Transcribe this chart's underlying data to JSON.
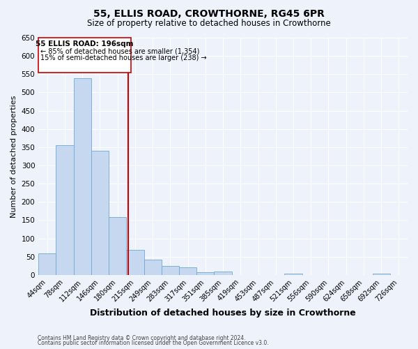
{
  "title": "55, ELLIS ROAD, CROWTHORNE, RG45 6PR",
  "subtitle": "Size of property relative to detached houses in Crowthorne",
  "xlabel": "Distribution of detached houses by size in Crowthorne",
  "ylabel": "Number of detached properties",
  "bar_labels": [
    "44sqm",
    "78sqm",
    "112sqm",
    "146sqm",
    "180sqm",
    "215sqm",
    "249sqm",
    "283sqm",
    "317sqm",
    "351sqm",
    "385sqm",
    "419sqm",
    "453sqm",
    "487sqm",
    "521sqm",
    "556sqm",
    "590sqm",
    "624sqm",
    "658sqm",
    "692sqm",
    "726sqm"
  ],
  "bar_values": [
    60,
    355,
    540,
    340,
    158,
    68,
    42,
    25,
    20,
    8,
    10,
    0,
    0,
    0,
    3,
    0,
    0,
    0,
    0,
    3,
    0
  ],
  "bar_color": "#c5d8f0",
  "bar_edgecolor": "#6fa8d4",
  "vline_x": 4.62,
  "annotation_text_line1": "55 ELLIS ROAD: 196sqm",
  "annotation_text_line2": "← 85% of detached houses are smaller (1,354)",
  "annotation_text_line3": "15% of semi-detached houses are larger (238) →",
  "vline_color": "#cc0000",
  "box_color": "#ffffff",
  "box_edgecolor": "#cc0000",
  "ylim": [
    0,
    650
  ],
  "yticks": [
    0,
    50,
    100,
    150,
    200,
    250,
    300,
    350,
    400,
    450,
    500,
    550,
    600,
    650
  ],
  "footer_line1": "Contains HM Land Registry data © Crown copyright and database right 2024.",
  "footer_line2": "Contains public sector information licensed under the Open Government Licence v3.0.",
  "background_color": "#eef2fb",
  "plot_background": "#eef2fb",
  "grid_color": "#ffffff"
}
